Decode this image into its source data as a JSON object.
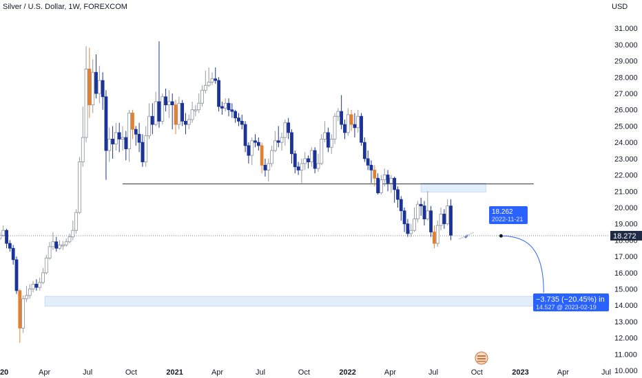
{
  "header": {
    "title": "Silver / U.S. Dollar, 1W, FOREXCOM",
    "currency": "USD"
  },
  "colors": {
    "up": "#d1d4dc",
    "down": "#1a3399",
    "orange": "#e08030",
    "accent": "#2962ff",
    "zone": "#e3eefb"
  },
  "icons": {
    "flag": "flag-icon",
    "tool": "pencil-icon"
  },
  "chart_data": {
    "type": "candlestick",
    "ylim": [
      9.75,
      32.4
    ],
    "y_ticks": [
      "10.000",
      "11.000",
      "12.000",
      "13.000",
      "14.000",
      "15.000",
      "16.000",
      "17.000",
      "18.000",
      "19.000",
      "20.000",
      "21.000",
      "22.000",
      "23.000",
      "24.000",
      "25.000",
      "26.000",
      "27.000",
      "28.000",
      "29.000",
      "30.000",
      "31.000"
    ],
    "x_ticks": [
      {
        "label": "20",
        "date": "2020-01-01",
        "bold": true
      },
      {
        "label": "Apr",
        "date": "2020-04-01"
      },
      {
        "label": "Jul",
        "date": "2020-07-01"
      },
      {
        "label": "Oct",
        "date": "2020-10-01"
      },
      {
        "label": "2021",
        "date": "2021-01-01",
        "bold": true
      },
      {
        "label": "Apr",
        "date": "2021-04-01"
      },
      {
        "label": "Jul",
        "date": "2021-07-01"
      },
      {
        "label": "Oct",
        "date": "2021-10-01"
      },
      {
        "label": "2022",
        "date": "2022-01-01",
        "bold": true
      },
      {
        "label": "Apr",
        "date": "2022-04-01"
      },
      {
        "label": "Jul",
        "date": "2022-07-01"
      },
      {
        "label": "Oct",
        "date": "2022-10-01"
      },
      {
        "label": "2023",
        "date": "2023-01-01",
        "bold": true
      },
      {
        "label": "Apr",
        "date": "2023-04-01"
      },
      {
        "label": "Jul",
        "date": "2023-07-01"
      }
    ],
    "candles_from": "2019-12-01",
    "candles": [
      [
        18.2,
        18.2,
        18.3,
        18.05
      ],
      [
        18.2,
        18.0,
        18.35,
        17.9
      ],
      [
        18.0,
        18.25,
        18.4,
        17.95
      ],
      [
        18.25,
        18.1,
        18.45,
        18.0
      ],
      [
        18.1,
        18.3,
        18.5,
        18.0
      ],
      [
        18.3,
        18.6,
        18.9,
        18.2
      ],
      [
        18.6,
        17.8,
        18.7,
        17.5
      ],
      [
        17.8,
        17.5,
        18.0,
        17.3
      ],
      [
        17.5,
        16.8,
        17.7,
        16.5
      ],
      [
        16.8,
        14.9,
        17.0,
        14.7
      ],
      [
        14.9,
        12.6,
        15.0,
        11.7
      ],
      [
        12.6,
        14.4,
        14.6,
        12.3
      ],
      [
        14.4,
        14.6,
        15.2,
        14.2
      ],
      [
        14.6,
        15.0,
        15.3,
        14.4
      ],
      [
        15.0,
        15.3,
        15.5,
        14.8
      ],
      [
        15.3,
        15.1,
        15.6,
        14.9
      ],
      [
        15.1,
        15.4,
        15.7,
        14.9
      ],
      [
        15.4,
        16.0,
        16.3,
        15.3
      ],
      [
        16.0,
        16.9,
        17.1,
        15.9
      ],
      [
        16.9,
        17.6,
        17.9,
        16.8
      ],
      [
        17.6,
        17.9,
        18.5,
        17.4
      ],
      [
        17.9,
        17.5,
        18.2,
        17.3
      ],
      [
        17.5,
        17.7,
        18.0,
        17.4
      ],
      [
        17.7,
        17.7,
        17.95,
        17.4
      ],
      [
        17.7,
        17.9,
        18.1,
        17.6
      ],
      [
        17.9,
        18.2,
        18.4,
        17.8
      ],
      [
        18.2,
        18.6,
        19.2,
        18.0
      ],
      [
        18.6,
        19.7,
        19.9,
        18.4
      ],
      [
        19.7,
        22.8,
        23.1,
        19.6
      ],
      [
        22.8,
        24.3,
        26.2,
        22.5
      ],
      [
        24.3,
        28.5,
        29.9,
        24.0
      ],
      [
        28.5,
        26.3,
        29.8,
        25.5
      ],
      [
        26.3,
        28.3,
        29.1,
        25.8
      ],
      [
        28.3,
        27.0,
        29.4,
        26.7
      ],
      [
        27.0,
        27.8,
        28.7,
        26.4
      ],
      [
        27.8,
        26.8,
        28.3,
        26.0
      ],
      [
        26.8,
        23.5,
        27.2,
        21.7
      ],
      [
        23.5,
        24.2,
        24.9,
        22.8
      ],
      [
        24.2,
        23.9,
        25.0,
        23.0
      ],
      [
        23.9,
        24.6,
        25.2,
        23.5
      ],
      [
        24.6,
        24.2,
        25.2,
        23.4
      ],
      [
        24.2,
        24.3,
        25.0,
        23.5
      ],
      [
        24.3,
        23.6,
        24.7,
        22.9
      ],
      [
        23.6,
        25.8,
        26.0,
        22.8
      ],
      [
        25.8,
        24.8,
        26.0,
        24.2
      ],
      [
        24.8,
        24.5,
        25.0,
        23.8
      ],
      [
        24.5,
        24.0,
        25.2,
        23.4
      ],
      [
        24.0,
        22.8,
        24.5,
        22.5
      ],
      [
        22.8,
        24.4,
        25.0,
        22.5
      ],
      [
        24.4,
        25.6,
        26.4,
        24.2
      ],
      [
        25.6,
        25.1,
        26.4,
        24.5
      ],
      [
        25.1,
        26.5,
        27.1,
        25.0
      ],
      [
        26.5,
        25.3,
        30.2,
        24.9
      ],
      [
        25.3,
        26.8,
        27.0,
        25.1
      ],
      [
        26.8,
        26.3,
        27.3,
        25.9
      ],
      [
        26.3,
        26.5,
        27.2,
        25.5
      ],
      [
        26.5,
        26.3,
        27.0,
        24.8
      ],
      [
        26.3,
        25.1,
        26.6,
        24.5
      ],
      [
        25.1,
        26.4,
        26.8,
        24.8
      ],
      [
        26.4,
        25.3,
        26.6,
        25.0
      ],
      [
        25.3,
        25.1,
        25.8,
        24.5
      ],
      [
        25.1,
        25.4,
        25.7,
        24.8
      ],
      [
        25.4,
        26.0,
        26.5,
        25.2
      ],
      [
        26.0,
        26.0,
        26.3,
        25.6
      ],
      [
        26.0,
        26.4,
        27.0,
        25.8
      ],
      [
        26.4,
        27.2,
        27.5,
        26.2
      ],
      [
        27.2,
        27.5,
        28.4,
        27.0
      ],
      [
        27.5,
        27.7,
        28.6,
        27.4
      ],
      [
        27.7,
        27.9,
        28.3,
        27.5
      ],
      [
        27.9,
        27.8,
        28.6,
        27.6
      ],
      [
        27.8,
        26.2,
        28.0,
        25.9
      ],
      [
        26.2,
        26.1,
        26.5,
        25.7
      ],
      [
        26.1,
        26.4,
        26.7,
        25.9
      ],
      [
        26.4,
        26.0,
        26.7,
        25.6
      ],
      [
        26.0,
        25.9,
        26.4,
        25.5
      ],
      [
        25.9,
        25.5,
        26.0,
        25.2
      ],
      [
        25.5,
        25.3,
        25.8,
        25.0
      ],
      [
        25.3,
        25.1,
        25.7,
        24.8
      ],
      [
        25.1,
        23.8,
        25.3,
        23.4
      ],
      [
        23.8,
        23.2,
        24.0,
        22.7
      ],
      [
        23.2,
        24.1,
        24.3,
        22.6
      ],
      [
        24.1,
        24.0,
        24.5,
        23.7
      ],
      [
        24.0,
        23.8,
        24.3,
        23.5
      ],
      [
        23.8,
        22.6,
        24.0,
        22.1
      ],
      [
        22.6,
        22.3,
        23.0,
        21.9
      ],
      [
        22.3,
        22.7,
        23.0,
        21.6
      ],
      [
        22.7,
        23.5,
        23.8,
        22.5
      ],
      [
        23.5,
        24.1,
        24.7,
        23.4
      ],
      [
        24.1,
        24.0,
        25.0,
        23.7
      ],
      [
        24.0,
        24.3,
        24.6,
        23.5
      ],
      [
        24.3,
        25.2,
        25.4,
        23.8
      ],
      [
        25.2,
        24.6,
        25.5,
        24.2
      ],
      [
        24.6,
        23.3,
        24.8,
        22.7
      ],
      [
        23.3,
        22.5,
        23.5,
        22.1
      ],
      [
        22.5,
        22.3,
        22.8,
        22.0
      ],
      [
        22.3,
        22.7,
        23.0,
        21.5
      ],
      [
        22.7,
        23.0,
        23.4,
        22.3
      ],
      [
        23.0,
        22.8,
        23.2,
        22.4
      ],
      [
        22.8,
        23.5,
        23.7,
        22.5
      ],
      [
        23.5,
        22.4,
        23.7,
        22.1
      ],
      [
        22.4,
        22.7,
        23.3,
        22.2
      ],
      [
        22.7,
        24.2,
        24.5,
        22.6
      ],
      [
        24.2,
        24.6,
        25.3,
        24.0
      ],
      [
        24.6,
        23.7,
        24.9,
        23.4
      ],
      [
        23.7,
        24.2,
        24.5,
        23.3
      ],
      [
        24.2,
        25.6,
        25.8,
        23.9
      ],
      [
        25.6,
        25.9,
        26.1,
        25.3
      ],
      [
        25.9,
        25.1,
        26.9,
        24.8
      ],
      [
        25.1,
        24.6,
        25.4,
        24.2
      ],
      [
        24.6,
        25.7,
        26.1,
        24.4
      ],
      [
        25.7,
        25.1,
        26.0,
        24.7
      ],
      [
        25.1,
        24.9,
        25.8,
        24.3
      ],
      [
        24.9,
        25.6,
        26.0,
        24.6
      ],
      [
        25.6,
        24.0,
        25.8,
        23.8
      ],
      [
        24.0,
        23.0,
        24.3,
        22.8
      ],
      [
        23.0,
        22.6,
        23.5,
        22.3
      ],
      [
        22.6,
        22.3,
        22.9,
        21.5
      ],
      [
        22.3,
        21.8,
        22.6,
        21.3
      ],
      [
        21.8,
        20.9,
        22.1,
        20.8
      ],
      [
        20.9,
        21.7,
        22.0,
        20.8
      ],
      [
        21.7,
        22.0,
        22.4,
        21.3
      ],
      [
        22.0,
        21.5,
        22.3,
        21.0
      ],
      [
        21.5,
        21.8,
        22.0,
        20.9
      ],
      [
        21.8,
        21.1,
        21.9,
        20.3
      ],
      [
        21.1,
        20.5,
        21.3,
        20.0
      ],
      [
        20.5,
        19.8,
        20.7,
        19.2
      ],
      [
        19.8,
        19.0,
        20.0,
        18.5
      ],
      [
        19.0,
        18.4,
        19.3,
        18.2
      ],
      [
        18.4,
        18.6,
        19.0,
        18.2
      ],
      [
        18.6,
        19.3,
        20.0,
        18.5
      ],
      [
        19.3,
        20.2,
        20.4,
        19.1
      ],
      [
        20.2,
        20.1,
        20.6,
        19.5
      ],
      [
        20.1,
        19.3,
        20.4,
        18.9
      ],
      [
        19.3,
        19.8,
        21.0,
        19.2
      ],
      [
        19.8,
        18.5,
        20.1,
        18.2
      ],
      [
        18.5,
        17.8,
        18.9,
        17.5
      ],
      [
        17.8,
        18.9,
        19.2,
        17.6
      ],
      [
        18.9,
        19.6,
        20.0,
        18.6
      ],
      [
        19.6,
        19.0,
        19.9,
        18.7
      ],
      [
        19.0,
        20.1,
        20.5,
        18.9
      ],
      [
        20.1,
        18.3,
        20.5,
        18.0
      ]
    ],
    "horizontal_levels": [
      {
        "price": 21.45,
        "from": "2020-09-13",
        "to": "2023-01-29"
      }
    ],
    "zones": [
      {
        "price_high": 21.5,
        "price_low": 20.95,
        "from": "2022-06-05",
        "to": "2022-10-20"
      },
      {
        "price_high": 14.55,
        "price_low": 13.95,
        "from": "2020-04-02",
        "to": "2023-07-31"
      }
    ],
    "last_price": "18.272",
    "projection": {
      "start": {
        "price": "18.262",
        "date": "2022-11-21"
      },
      "end": {
        "price": "14.527",
        "date": "2023-02-19"
      },
      "change_label": "−3.735 (−20.45%) in",
      "end_label": "14.527 @ 2023-02-19"
    }
  }
}
